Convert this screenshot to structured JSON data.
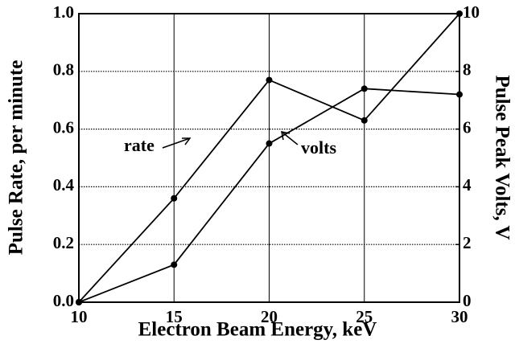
{
  "chart_data": {
    "type": "line",
    "x_label": "Electron Beam Energy, keV",
    "y_label": "Pulse Rate, per minute",
    "y2_label": "Pulse Peak Volts, V",
    "x": [
      10,
      15,
      20,
      25,
      30
    ],
    "series": [
      {
        "name": "rate",
        "color": "#000000",
        "values": [
          0,
          0.36,
          0.77,
          0.63,
          1.0
        ]
      },
      {
        "name": "volts",
        "color": "#000000",
        "axis": "y2",
        "values": [
          0,
          1.3,
          5.5,
          7.4,
          7.2
        ]
      }
    ],
    "xlim": [
      10,
      30
    ],
    "xticks": [
      10,
      15,
      20,
      25,
      30
    ],
    "ylim": [
      0,
      1.0
    ],
    "yticks": [
      {
        "value": 0,
        "label": "0.0"
      },
      0.2,
      0.4,
      0.6,
      0.8,
      {
        "value": 1.0,
        "label": "1.0"
      }
    ],
    "y2lim": [
      0,
      10
    ],
    "y2ticks": [
      0,
      2,
      4,
      6,
      8,
      10
    ],
    "grid": true
  }
}
